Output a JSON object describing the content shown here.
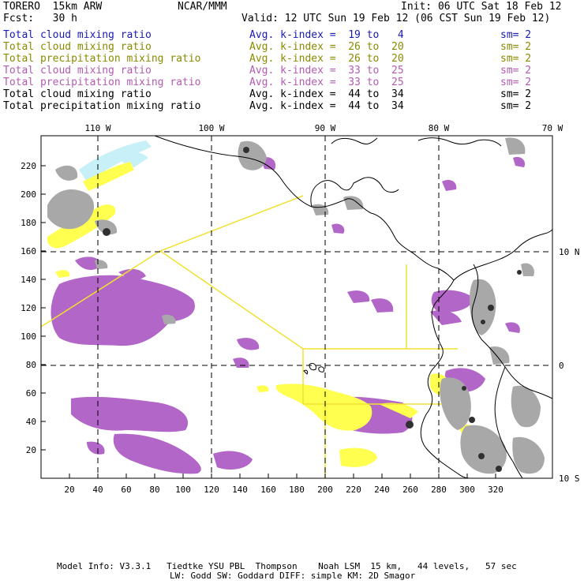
{
  "header": {
    "model": "TORERO  15km ARW",
    "org": "NCAR/MMM",
    "init": "Init: 06 UTC Sat 18 Feb 12",
    "fcst": "Fcst:   30 h",
    "valid": "Valid: 12 UTC Sun 19 Feb 12 (06 CST Sun 19 Feb 12)"
  },
  "legend": [
    {
      "field": "Total cloud mixing ratio",
      "kindex": "Avg. k-index =  19 to   4",
      "sm": "sm= 2",
      "color": "#1a1ab4"
    },
    {
      "field": "Total cloud mixing ratio",
      "kindex": "Avg. k-index =  26 to  20",
      "sm": "sm= 2",
      "color": "#8a8a00"
    },
    {
      "field": "Total precipitation mixing ratio",
      "kindex": "Avg. k-index =  26 to  20",
      "sm": "sm= 2",
      "color": "#8a8a00"
    },
    {
      "field": "Total cloud mixing ratio",
      "kindex": "Avg. k-index =  33 to  25",
      "sm": "sm= 2",
      "color": "#b45ab4"
    },
    {
      "field": "Total precipitation mixing ratio",
      "kindex": "Avg. k-index =  33 to  25",
      "sm": "sm= 2",
      "color": "#b45ab4"
    },
    {
      "field": "Total cloud mixing ratio",
      "kindex": "Avg. k-index =  44 to  34",
      "sm": "sm= 2",
      "color": "#000000"
    },
    {
      "field": "Total precipitation mixing ratio",
      "kindex": "Avg. k-index =  44 to  34",
      "sm": "sm= 2",
      "color": "#000000"
    }
  ],
  "map": {
    "lon_labels": [
      "110 W",
      "100 W",
      "90 W",
      "80 W",
      "70 W"
    ],
    "lat_labels": [
      "10 N",
      "0",
      "10 S"
    ],
    "x_ticks": [
      "20",
      "40",
      "60",
      "80",
      "100",
      "120",
      "140",
      "160",
      "180",
      "200",
      "220",
      "240",
      "260",
      "280",
      "300",
      "320"
    ],
    "y_ticks": [
      "220",
      "200",
      "180",
      "160",
      "140",
      "120",
      "100",
      "80",
      "60",
      "40",
      "20"
    ],
    "colors": {
      "yellow": "#ffff50",
      "magenta": "#b266c8",
      "gray": "#a0a0a0",
      "cyan": "#c8f0f8",
      "boundary": "#f0e030"
    }
  },
  "footer": {
    "line1": "Model Info: V3.3.1   Tiedtke YSU PBL  Thompson    Noah LSM  15 km,   44 levels,   57 sec",
    "line2": "LW: Godd SW: Goddard DIFF: simple KM: 2D Smagor"
  }
}
